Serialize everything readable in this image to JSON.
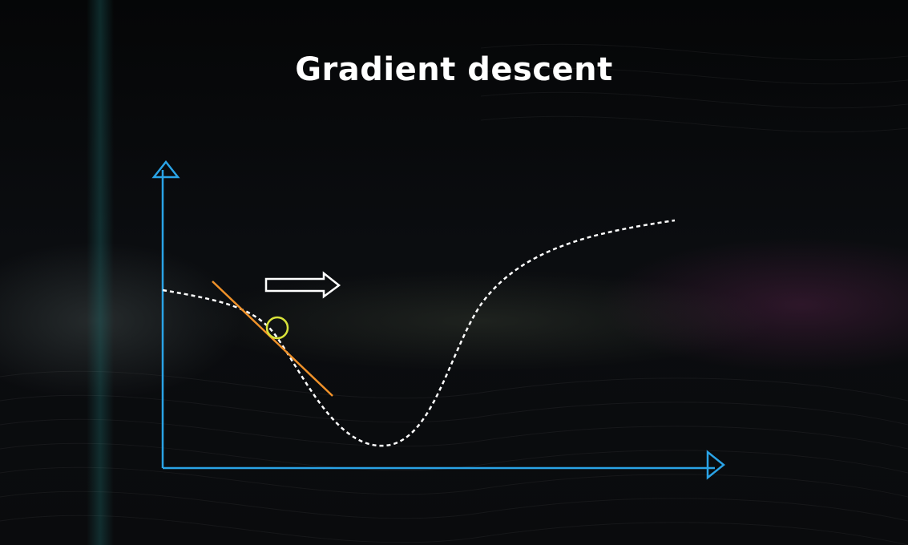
{
  "title": "Gradient descent",
  "colors": {
    "axis": "#2aa3e6",
    "curve": "#ffffff",
    "tangent": "#f0922a",
    "point": "#d8e23a",
    "arrow": "#ffffff"
  },
  "icons": {
    "direction_arrow": "right-arrow-icon"
  }
}
